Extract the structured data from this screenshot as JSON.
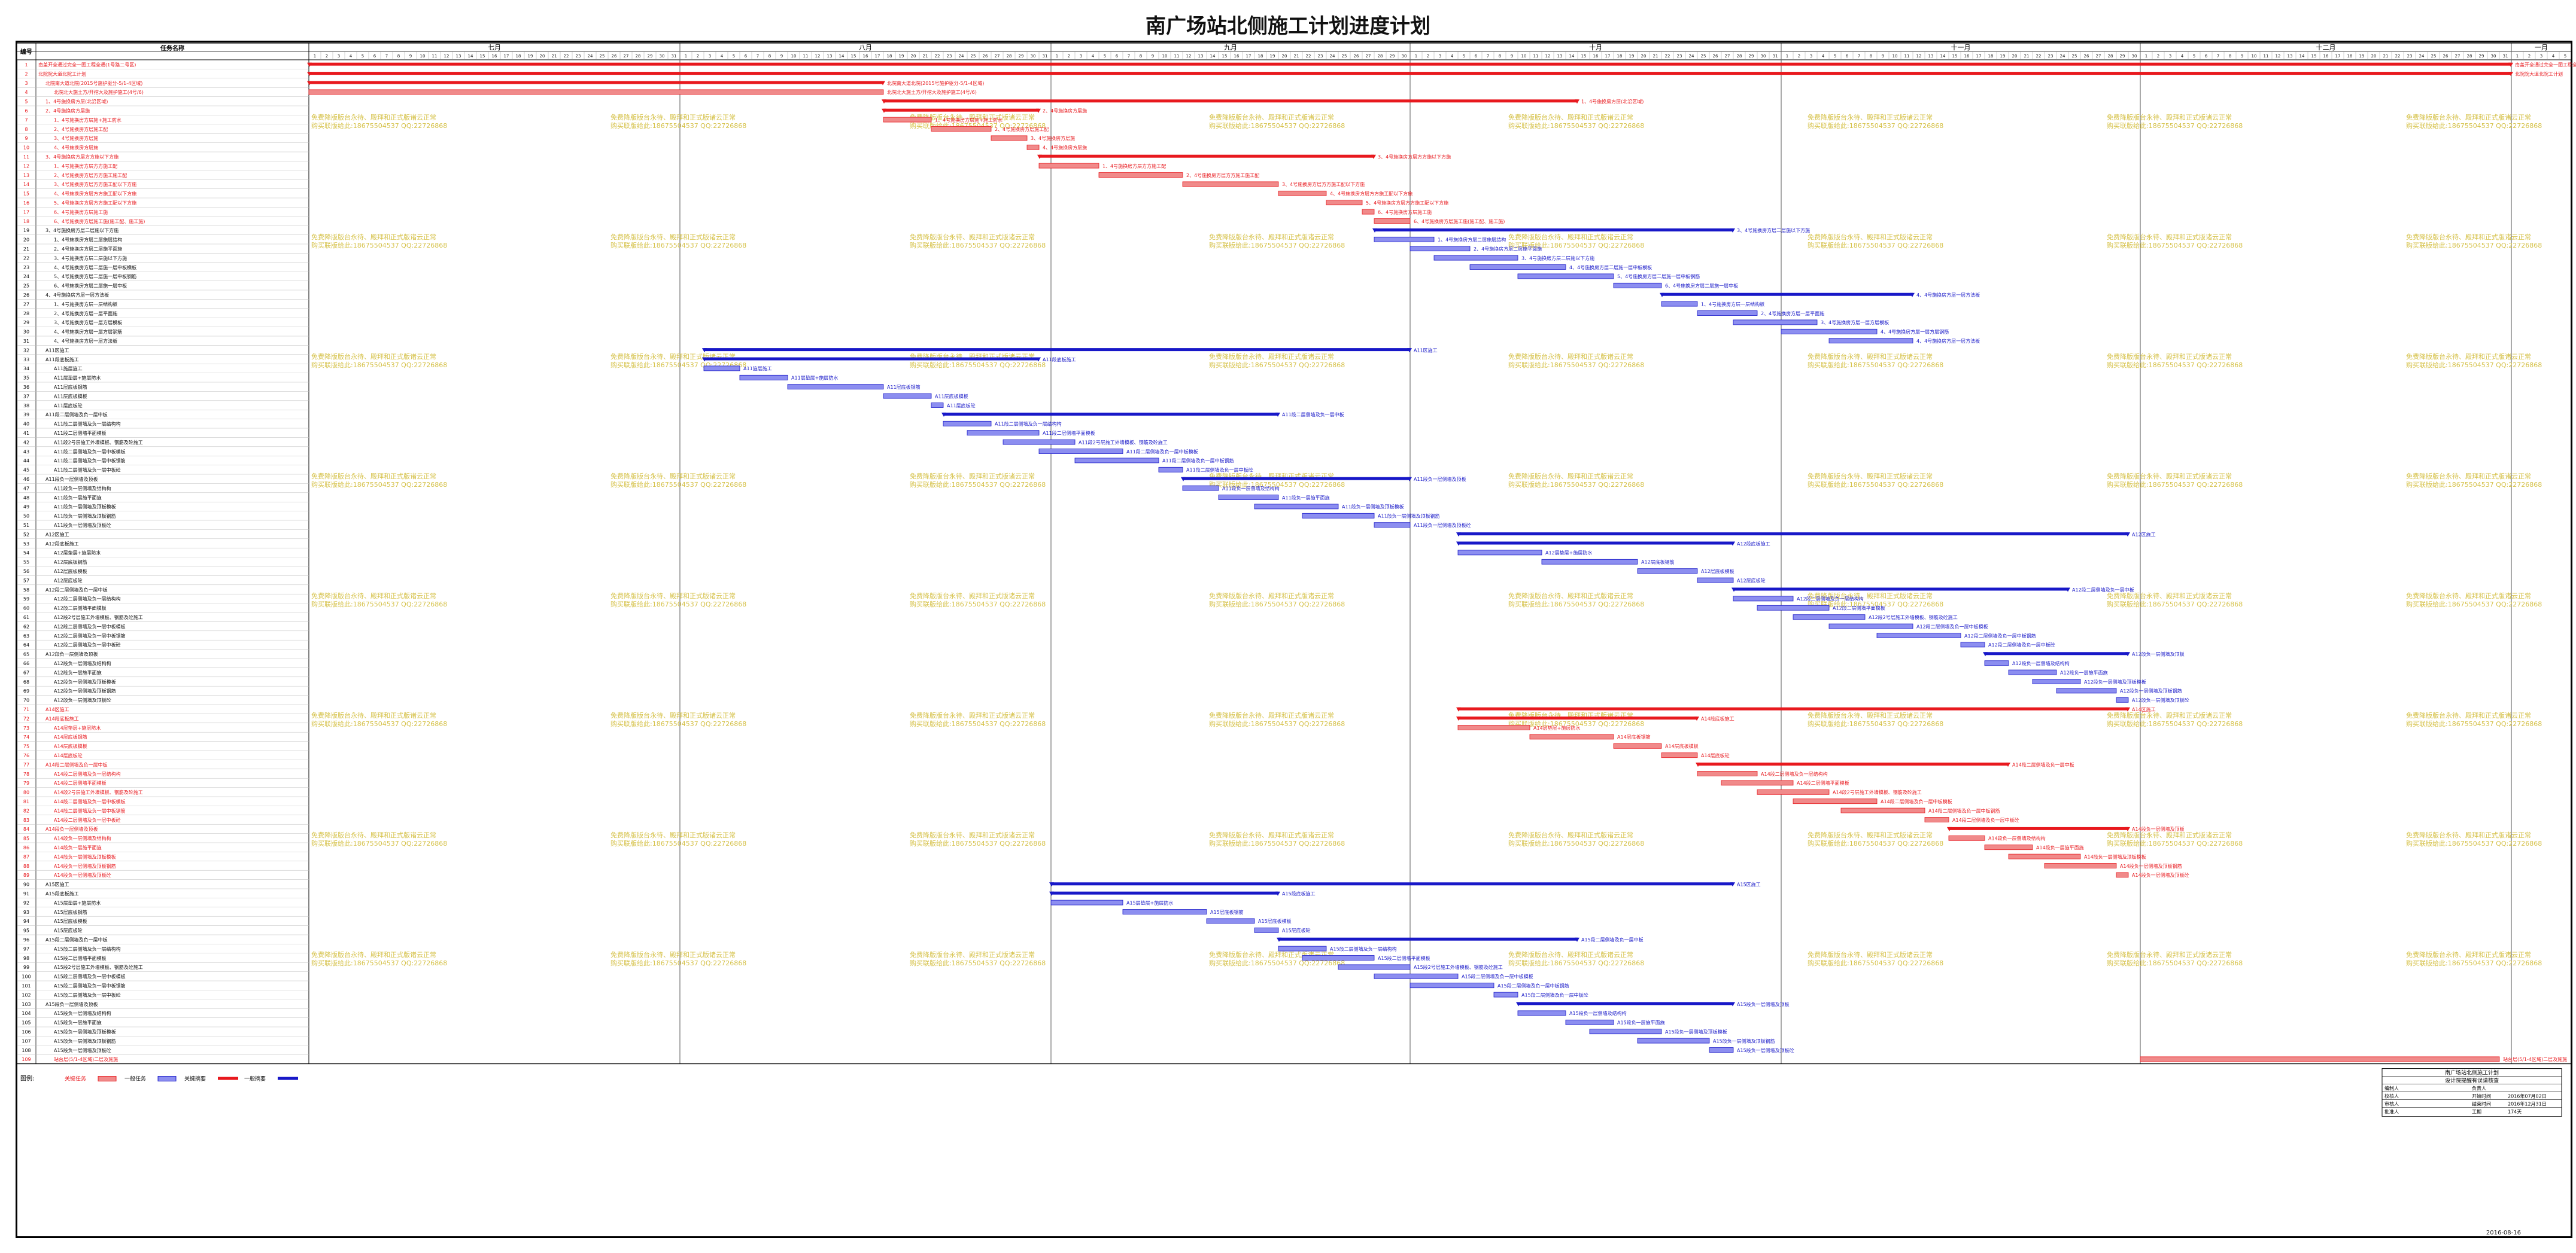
{
  "title": "南广场站北侧施工计划进度计划",
  "header": {
    "id": "编号",
    "name": "任务名称"
  },
  "months": [
    "七月",
    "八月",
    "九月",
    "十月",
    "十一月",
    "十二月",
    "一月"
  ],
  "legend": {
    "label": "图例:",
    "items": [
      "关键任务",
      "一般任务",
      "关键摘要",
      "一般摘要"
    ]
  },
  "titleblock": {
    "heading": "南广场站北侧施工计划",
    "subheading": "设计院提醒有误请核查",
    "rows": [
      [
        "编制人",
        "",
        "负责人",
        ""
      ],
      [
        "校核人",
        "",
        "开始时间",
        "2016年07月02日"
      ],
      [
        "审核人",
        "",
        "结束时间",
        "2016年12月31日"
      ],
      [
        "批准人",
        "",
        "工期",
        "174天"
      ]
    ]
  },
  "footer_date": "2016-08-16",
  "colors": {
    "critical": "#e8191e",
    "critical_fill": "#f08a8a",
    "normal": "#1818c8",
    "normal_fill": "#8c8ef0",
    "watermark": "#d6c24a"
  },
  "watermark": [
    "免费降版版台永待、殿拜和正式版诸云正常",
    "购买联版给此:18675504537 QQ:22726868"
  ],
  "chart_data": {
    "type": "gantt",
    "time_unit": "day",
    "x_range": [
      "2016-07-01",
      "2017-01-05"
    ],
    "tasks": [
      {
        "id": 1,
        "name": "南盖开全通过完全一图工程全通(1号路二号区)",
        "start": "2016-07-01",
        "end": "2017-01-01",
        "kind": "critical_summary"
      },
      {
        "id": 2,
        "name": "北院院大道北院工计划",
        "start": "2016-07-01",
        "end": "2017-01-01",
        "kind": "critical_summary"
      },
      {
        "id": 3,
        "name": "北院南大道北院(2015号施护驱分-5/1-4区域)",
        "start": "2016-07-01",
        "end": "2016-08-18",
        "kind": "critical_summary"
      },
      {
        "id": 4,
        "name": "北院北大施土方/开挖大及施护施工(4号/6)",
        "start": "2016-07-01",
        "end": "2016-08-18",
        "kind": "critical"
      },
      {
        "id": 5,
        "name": "1、4号施换房方层(北沿区域)",
        "start": "2016-08-18",
        "end": "2016-10-15",
        "kind": "critical_summary"
      },
      {
        "id": 6,
        "name": "2、4号施换房方层施",
        "start": "2016-08-18",
        "end": "2016-08-31",
        "kind": "critical_summary"
      },
      {
        "id": 7,
        "name": "1、4号施换房方层施+施工防水",
        "start": "2016-08-18",
        "end": "2016-08-22",
        "kind": "critical"
      },
      {
        "id": 8,
        "name": "2、4号施换房方层施工配",
        "start": "2016-08-22",
        "end": "2016-08-27",
        "kind": "critical"
      },
      {
        "id": 9,
        "name": "3、4号施换房方层施",
        "start": "2016-08-27",
        "end": "2016-08-30",
        "kind": "critical"
      },
      {
        "id": 10,
        "name": "4、4号施换房方层施",
        "start": "2016-08-30",
        "end": "2016-08-31",
        "kind": "critical"
      },
      {
        "id": 11,
        "name": "3、4号施换房方层方方施以下方施",
        "start": "2016-08-31",
        "end": "2016-09-28",
        "kind": "critical_summary"
      },
      {
        "id": 12,
        "name": "1、4号施换房方层方方施工配",
        "start": "2016-08-31",
        "end": "2016-09-05",
        "kind": "critical"
      },
      {
        "id": 13,
        "name": "2、4号施换房方层方方施工施工配",
        "start": "2016-09-05",
        "end": "2016-09-12",
        "kind": "critical"
      },
      {
        "id": 14,
        "name": "3、4号施换房方层方方施工配以下方施",
        "start": "2016-09-12",
        "end": "2016-09-20",
        "kind": "critical"
      },
      {
        "id": 15,
        "name": "4、4号施换房方层方方施工配以下方施",
        "start": "2016-09-20",
        "end": "2016-09-24",
        "kind": "critical"
      },
      {
        "id": 16,
        "name": "5、4号施换房方层方方施工配以下方施",
        "start": "2016-09-24",
        "end": "2016-09-27",
        "kind": "critical"
      },
      {
        "id": 17,
        "name": "6、4号施换房方层施工施",
        "start": "2016-09-27",
        "end": "2016-09-28",
        "kind": "critical"
      },
      {
        "id": 18,
        "name": "6、4号施换房方层施工施(施工配、施工施)",
        "start": "2016-09-28",
        "end": "2016-10-01",
        "kind": "critical"
      },
      {
        "id": 19,
        "name": "3、4号施换房方层二层施以下方施",
        "start": "2016-09-28",
        "end": "2016-10-28",
        "kind": "summary"
      },
      {
        "id": 20,
        "name": "1、4号施换房方层二层施层结构",
        "start": "2016-09-28",
        "end": "2016-10-03",
        "kind": "normal"
      },
      {
        "id": 21,
        "name": "2、4号施换房方层二层施平面施",
        "start": "2016-10-01",
        "end": "2016-10-06",
        "kind": "normal"
      },
      {
        "id": 22,
        "name": "3、4号施换房方层二层施以下方施",
        "start": "2016-10-03",
        "end": "2016-10-10",
        "kind": "normal"
      },
      {
        "id": 23,
        "name": "4、4号施换房方层二层施一层中板模板",
        "start": "2016-10-06",
        "end": "2016-10-14",
        "kind": "normal"
      },
      {
        "id": 24,
        "name": "5、4号施换房方层二层施一层中板钢筋",
        "start": "2016-10-10",
        "end": "2016-10-18",
        "kind": "normal"
      },
      {
        "id": 25,
        "name": "6、4号施换房方层二层施一层中板",
        "start": "2016-10-18",
        "end": "2016-10-22",
        "kind": "normal"
      },
      {
        "id": 26,
        "name": "4、4号施换房方层一层方法板",
        "start": "2016-10-22",
        "end": "2016-11-12",
        "kind": "summary"
      },
      {
        "id": 27,
        "name": "1、4号施换房方层一层结构板",
        "start": "2016-10-22",
        "end": "2016-10-25",
        "kind": "normal"
      },
      {
        "id": 28,
        "name": "2、4号施换房方层一层平面施",
        "start": "2016-10-25",
        "end": "2016-10-30",
        "kind": "normal"
      },
      {
        "id": 29,
        "name": "3、4号施换房方层一层方层模板",
        "start": "2016-10-28",
        "end": "2016-11-04",
        "kind": "normal"
      },
      {
        "id": 30,
        "name": "4、4号施换房方层一层方层钢筋",
        "start": "2016-11-01",
        "end": "2016-11-09",
        "kind": "normal"
      },
      {
        "id": 31,
        "name": "4、4号施换房方层一层方法板",
        "start": "2016-11-05",
        "end": "2016-11-12",
        "kind": "normal"
      },
      {
        "id": 32,
        "name": "A11区施工",
        "start": "2016-08-03",
        "end": "2016-10-01",
        "kind": "summary"
      },
      {
        "id": 33,
        "name": "A11段底板施工",
        "start": "2016-08-03",
        "end": "2016-08-31",
        "kind": "summary"
      },
      {
        "id": 34,
        "name": "A11施层施工",
        "start": "2016-08-03",
        "end": "2016-08-06",
        "kind": "normal"
      },
      {
        "id": 35,
        "name": "A11层垫层+施层防水",
        "start": "2016-08-06",
        "end": "2016-08-10",
        "kind": "normal"
      },
      {
        "id": 36,
        "name": "A11层底板钢筋",
        "start": "2016-08-10",
        "end": "2016-08-18",
        "kind": "normal"
      },
      {
        "id": 37,
        "name": "A11层底板模板",
        "start": "2016-08-18",
        "end": "2016-08-22",
        "kind": "normal"
      },
      {
        "id": 38,
        "name": "A11层底板砼",
        "start": "2016-08-22",
        "end": "2016-08-23",
        "kind": "normal"
      },
      {
        "id": 39,
        "name": "A11段二层侧墙及负一层中板",
        "start": "2016-08-23",
        "end": "2016-09-20",
        "kind": "summary"
      },
      {
        "id": 40,
        "name": "A11段二层侧墙及负一层结构构",
        "start": "2016-08-23",
        "end": "2016-08-27",
        "kind": "normal"
      },
      {
        "id": 41,
        "name": "A11段二层侧墙平面模板",
        "start": "2016-08-25",
        "end": "2016-08-31",
        "kind": "normal"
      },
      {
        "id": 42,
        "name": "A11段2号层施工外墙模板、钢筋及砼施工",
        "start": "2016-08-28",
        "end": "2016-09-03",
        "kind": "normal"
      },
      {
        "id": 43,
        "name": "A11段二层侧墙及负一层中板模板",
        "start": "2016-08-31",
        "end": "2016-09-07",
        "kind": "normal"
      },
      {
        "id": 44,
        "name": "A11段二层侧墙及负一层中板钢筋",
        "start": "2016-09-03",
        "end": "2016-09-10",
        "kind": "normal"
      },
      {
        "id": 45,
        "name": "A11段二层侧墙及负一层中板砼",
        "start": "2016-09-10",
        "end": "2016-09-12",
        "kind": "normal"
      },
      {
        "id": 46,
        "name": "A11段负一层侧墙及顶板",
        "start": "2016-09-12",
        "end": "2016-10-01",
        "kind": "summary"
      },
      {
        "id": 47,
        "name": "A11段负一层侧墙及结构构",
        "start": "2016-09-12",
        "end": "2016-09-15",
        "kind": "normal"
      },
      {
        "id": 48,
        "name": "A11段负一层施平面施",
        "start": "2016-09-15",
        "end": "2016-09-20",
        "kind": "normal"
      },
      {
        "id": 49,
        "name": "A11段负一层侧墙及顶板模板",
        "start": "2016-09-18",
        "end": "2016-09-25",
        "kind": "normal"
      },
      {
        "id": 50,
        "name": "A11段负一层侧墙及顶板钢筋",
        "start": "2016-09-22",
        "end": "2016-09-28",
        "kind": "normal"
      },
      {
        "id": 51,
        "name": "A11段负一层侧墙及顶板砼",
        "start": "2016-09-28",
        "end": "2016-10-01",
        "kind": "normal"
      },
      {
        "id": 52,
        "name": "A12区施工",
        "start": "2016-10-05",
        "end": "2016-11-30",
        "kind": "summary"
      },
      {
        "id": 53,
        "name": "A12段底板施工",
        "start": "2016-10-05",
        "end": "2016-10-28",
        "kind": "summary"
      },
      {
        "id": 54,
        "name": "A12层垫层+施层防水",
        "start": "2016-10-05",
        "end": "2016-10-12",
        "kind": "normal"
      },
      {
        "id": 55,
        "name": "A12层底板钢筋",
        "start": "2016-10-12",
        "end": "2016-10-20",
        "kind": "normal"
      },
      {
        "id": 56,
        "name": "A12层底板模板",
        "start": "2016-10-20",
        "end": "2016-10-25",
        "kind": "normal"
      },
      {
        "id": 57,
        "name": "A12层底板砼",
        "start": "2016-10-25",
        "end": "2016-10-28",
        "kind": "normal"
      },
      {
        "id": 58,
        "name": "A12段二层侧墙及负一层中板",
        "start": "2016-10-28",
        "end": "2016-11-25",
        "kind": "summary"
      },
      {
        "id": 59,
        "name": "A12段二层侧墙及负一层结构构",
        "start": "2016-10-28",
        "end": "2016-11-02",
        "kind": "normal"
      },
      {
        "id": 60,
        "name": "A12段二层侧墙平面模板",
        "start": "2016-10-30",
        "end": "2016-11-05",
        "kind": "normal"
      },
      {
        "id": 61,
        "name": "A12段2号层施工外墙模板、钢筋及砼施工",
        "start": "2016-11-02",
        "end": "2016-11-08",
        "kind": "normal"
      },
      {
        "id": 62,
        "name": "A12段二层侧墙及负一层中板模板",
        "start": "2016-11-05",
        "end": "2016-11-12",
        "kind": "normal"
      },
      {
        "id": 63,
        "name": "A12段二层侧墙及负一层中板钢筋",
        "start": "2016-11-09",
        "end": "2016-11-16",
        "kind": "normal"
      },
      {
        "id": 64,
        "name": "A12段二层侧墙及负一层中板砼",
        "start": "2016-11-16",
        "end": "2016-11-18",
        "kind": "normal"
      },
      {
        "id": 65,
        "name": "A12段负一层侧墙及顶板",
        "start": "2016-11-18",
        "end": "2016-11-30",
        "kind": "summary"
      },
      {
        "id": 66,
        "name": "A12段负一层侧墙及结构构",
        "start": "2016-11-18",
        "end": "2016-11-20",
        "kind": "normal"
      },
      {
        "id": 67,
        "name": "A12段负一层施平面施",
        "start": "2016-11-20",
        "end": "2016-11-24",
        "kind": "normal"
      },
      {
        "id": 68,
        "name": "A12段负一层侧墙及顶板模板",
        "start": "2016-11-22",
        "end": "2016-11-26",
        "kind": "normal"
      },
      {
        "id": 69,
        "name": "A12段负一层侧墙及顶板钢筋",
        "start": "2016-11-24",
        "end": "2016-11-29",
        "kind": "normal"
      },
      {
        "id": 70,
        "name": "A12段负一层侧墙及顶板砼",
        "start": "2016-11-29",
        "end": "2016-11-30",
        "kind": "normal"
      },
      {
        "id": 71,
        "name": "A14区施工",
        "start": "2016-10-05",
        "end": "2016-11-30",
        "kind": "critical_summary"
      },
      {
        "id": 72,
        "name": "A14段底板施工",
        "start": "2016-10-05",
        "end": "2016-10-25",
        "kind": "critical_summary"
      },
      {
        "id": 73,
        "name": "A14层垫层+施层防水",
        "start": "2016-10-05",
        "end": "2016-10-11",
        "kind": "critical"
      },
      {
        "id": 74,
        "name": "A14层底板钢筋",
        "start": "2016-10-11",
        "end": "2016-10-18",
        "kind": "critical"
      },
      {
        "id": 75,
        "name": "A14层底板模板",
        "start": "2016-10-18",
        "end": "2016-10-22",
        "kind": "critical"
      },
      {
        "id": 76,
        "name": "A14层底板砼",
        "start": "2016-10-22",
        "end": "2016-10-25",
        "kind": "critical"
      },
      {
        "id": 77,
        "name": "A14段二层侧墙及负一层中板",
        "start": "2016-10-25",
        "end": "2016-11-20",
        "kind": "critical_summary"
      },
      {
        "id": 78,
        "name": "A14段二层侧墙及负一层结构构",
        "start": "2016-10-25",
        "end": "2016-10-30",
        "kind": "critical"
      },
      {
        "id": 79,
        "name": "A14段二层侧墙平面模板",
        "start": "2016-10-27",
        "end": "2016-11-02",
        "kind": "critical"
      },
      {
        "id": 80,
        "name": "A14段2号层施工外墙模板、钢筋及砼施工",
        "start": "2016-10-30",
        "end": "2016-11-05",
        "kind": "critical"
      },
      {
        "id": 81,
        "name": "A14段二层侧墙及负一层中板模板",
        "start": "2016-11-02",
        "end": "2016-11-09",
        "kind": "critical"
      },
      {
        "id": 82,
        "name": "A14段二层侧墙及负一层中板钢筋",
        "start": "2016-11-06",
        "end": "2016-11-13",
        "kind": "critical"
      },
      {
        "id": 83,
        "name": "A14段二层侧墙及负一层中板砼",
        "start": "2016-11-13",
        "end": "2016-11-15",
        "kind": "critical"
      },
      {
        "id": 84,
        "name": "A14段负一层侧墙及顶板",
        "start": "2016-11-15",
        "end": "2016-11-30",
        "kind": "critical_summary"
      },
      {
        "id": 85,
        "name": "A14段负一层侧墙及结构构",
        "start": "2016-11-15",
        "end": "2016-11-18",
        "kind": "critical"
      },
      {
        "id": 86,
        "name": "A14段负一层施平面施",
        "start": "2016-11-18",
        "end": "2016-11-22",
        "kind": "critical"
      },
      {
        "id": 87,
        "name": "A14段负一层侧墙及顶板模板",
        "start": "2016-11-20",
        "end": "2016-11-26",
        "kind": "critical"
      },
      {
        "id": 88,
        "name": "A14段负一层侧墙及顶板钢筋",
        "start": "2016-11-23",
        "end": "2016-11-29",
        "kind": "critical"
      },
      {
        "id": 89,
        "name": "A14段负一层侧墙及顶板砼",
        "start": "2016-11-29",
        "end": "2016-11-30",
        "kind": "critical"
      },
      {
        "id": 90,
        "name": "A15区施工",
        "start": "2016-09-01",
        "end": "2016-10-28",
        "kind": "summary"
      },
      {
        "id": 91,
        "name": "A15段底板施工",
        "start": "2016-09-01",
        "end": "2016-09-20",
        "kind": "summary"
      },
      {
        "id": 92,
        "name": "A15层垫层+施层防水",
        "start": "2016-09-01",
        "end": "2016-09-07",
        "kind": "normal"
      },
      {
        "id": 93,
        "name": "A15层底板钢筋",
        "start": "2016-09-07",
        "end": "2016-09-14",
        "kind": "normal"
      },
      {
        "id": 94,
        "name": "A15层底板模板",
        "start": "2016-09-14",
        "end": "2016-09-18",
        "kind": "normal"
      },
      {
        "id": 95,
        "name": "A15层底板砼",
        "start": "2016-09-18",
        "end": "2016-09-20",
        "kind": "normal"
      },
      {
        "id": 96,
        "name": "A15段二层侧墙及负一层中板",
        "start": "2016-09-20",
        "end": "2016-10-15",
        "kind": "summary"
      },
      {
        "id": 97,
        "name": "A15段二层侧墙及负一层结构构",
        "start": "2016-09-20",
        "end": "2016-09-24",
        "kind": "normal"
      },
      {
        "id": 98,
        "name": "A15段二层侧墙平面模板",
        "start": "2016-09-22",
        "end": "2016-09-28",
        "kind": "normal"
      },
      {
        "id": 99,
        "name": "A15段2号层施工外墙模板、钢筋及砼施工",
        "start": "2016-09-25",
        "end": "2016-10-01",
        "kind": "normal"
      },
      {
        "id": 100,
        "name": "A15段二层侧墙及负一层中板模板",
        "start": "2016-09-28",
        "end": "2016-10-05",
        "kind": "normal"
      },
      {
        "id": 101,
        "name": "A15段二层侧墙及负一层中板钢筋",
        "start": "2016-10-01",
        "end": "2016-10-08",
        "kind": "normal"
      },
      {
        "id": 102,
        "name": "A15段二层侧墙及负一层中板砼",
        "start": "2016-10-08",
        "end": "2016-10-10",
        "kind": "normal"
      },
      {
        "id": 103,
        "name": "A15段负一层侧墙及顶板",
        "start": "2016-10-10",
        "end": "2016-10-28",
        "kind": "summary"
      },
      {
        "id": 104,
        "name": "A15段负一层侧墙及结构构",
        "start": "2016-10-10",
        "end": "2016-10-14",
        "kind": "normal"
      },
      {
        "id": 105,
        "name": "A15段负一层施平面施",
        "start": "2016-10-14",
        "end": "2016-10-18",
        "kind": "normal"
      },
      {
        "id": 106,
        "name": "A15段负一层侧墙及顶板模板",
        "start": "2016-10-16",
        "end": "2016-10-22",
        "kind": "normal"
      },
      {
        "id": 107,
        "name": "A15段负一层侧墙及顶板钢筋",
        "start": "2016-10-20",
        "end": "2016-10-26",
        "kind": "normal"
      },
      {
        "id": 108,
        "name": "A15段负一层侧墙及顶板砼",
        "start": "2016-10-26",
        "end": "2016-10-28",
        "kind": "normal"
      },
      {
        "id": 109,
        "name": "站台层(5/1-4区域)二层及施施",
        "start": "2016-12-01",
        "end": "2016-12-31",
        "kind": "critical"
      }
    ]
  }
}
